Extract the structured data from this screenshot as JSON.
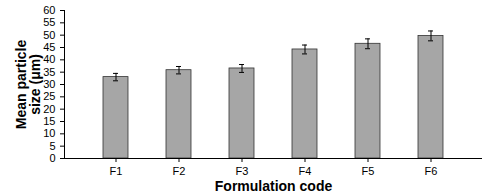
{
  "chart_data": {
    "type": "bar",
    "categories": [
      "F1",
      "F2",
      "F3",
      "F4",
      "F5",
      "F6"
    ],
    "values": [
      33,
      35.8,
      36.5,
      44.2,
      46.5,
      49.7
    ],
    "errors": [
      1.5,
      1.5,
      1.6,
      1.8,
      2,
      2
    ],
    "color": "#a6a6a6",
    "x_label": "Formulation code",
    "y_label": "Mean particle\nsize (μm)",
    "ylim": [
      0,
      60
    ],
    "yticks": [
      0,
      5,
      10,
      15,
      20,
      25,
      30,
      35,
      40,
      45,
      50,
      55,
      60
    ],
    "grid": false
  }
}
